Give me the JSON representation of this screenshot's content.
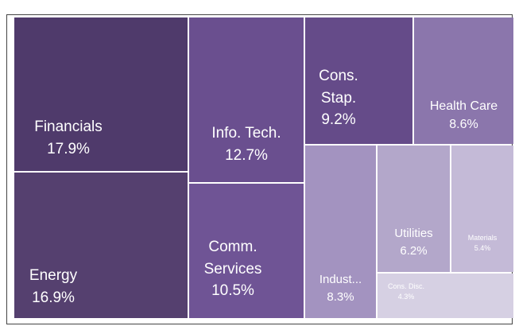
{
  "chart_data": {
    "type": "treemap",
    "categories": [
      "Financials",
      "Energy",
      "Info. Tech.",
      "Comm. Services",
      "Cons. Stap.",
      "Health Care",
      "Indust...",
      "Utilities",
      "Materials",
      "Cons. Disc."
    ],
    "values": [
      17.9,
      16.9,
      12.7,
      10.5,
      9.2,
      8.6,
      8.3,
      6.2,
      5.4,
      4.3
    ],
    "value_labels": [
      "17.9%",
      "16.9%",
      "12.7%",
      "10.5%",
      "9.2%",
      "8.6%",
      "8.3%",
      "6.2%",
      "5.4%",
      "4.3%"
    ],
    "colors": [
      "#4f3a6b",
      "#55406f",
      "#6a4f8f",
      "#6f5495",
      "#654b89",
      "#8b76ac",
      "#a393c0",
      "#b3a7ca",
      "#c4bad7",
      "#d6d0e3"
    ]
  }
}
